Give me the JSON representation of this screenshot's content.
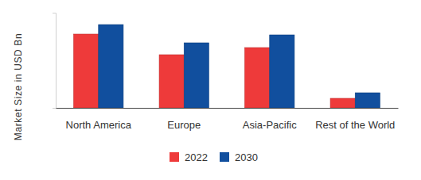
{
  "chart_data": {
    "type": "bar",
    "y_label": "Market Size in USD Bn",
    "categories": [
      "North America",
      "Europe",
      "Asia-Pacific",
      "Rest of the World"
    ],
    "series": [
      {
        "name": "2022",
        "color": "#ee3a3a",
        "values": [
          9.3,
          6.7,
          7.6,
          1.2
        ]
      },
      {
        "name": "2030",
        "color": "#114f9e",
        "values": [
          10.5,
          8.2,
          9.2,
          1.9
        ]
      }
    ],
    "ylim": [
      0,
      12
    ],
    "yticks": [],
    "grid": false,
    "legend": "bottom",
    "tick_labels": "x"
  }
}
